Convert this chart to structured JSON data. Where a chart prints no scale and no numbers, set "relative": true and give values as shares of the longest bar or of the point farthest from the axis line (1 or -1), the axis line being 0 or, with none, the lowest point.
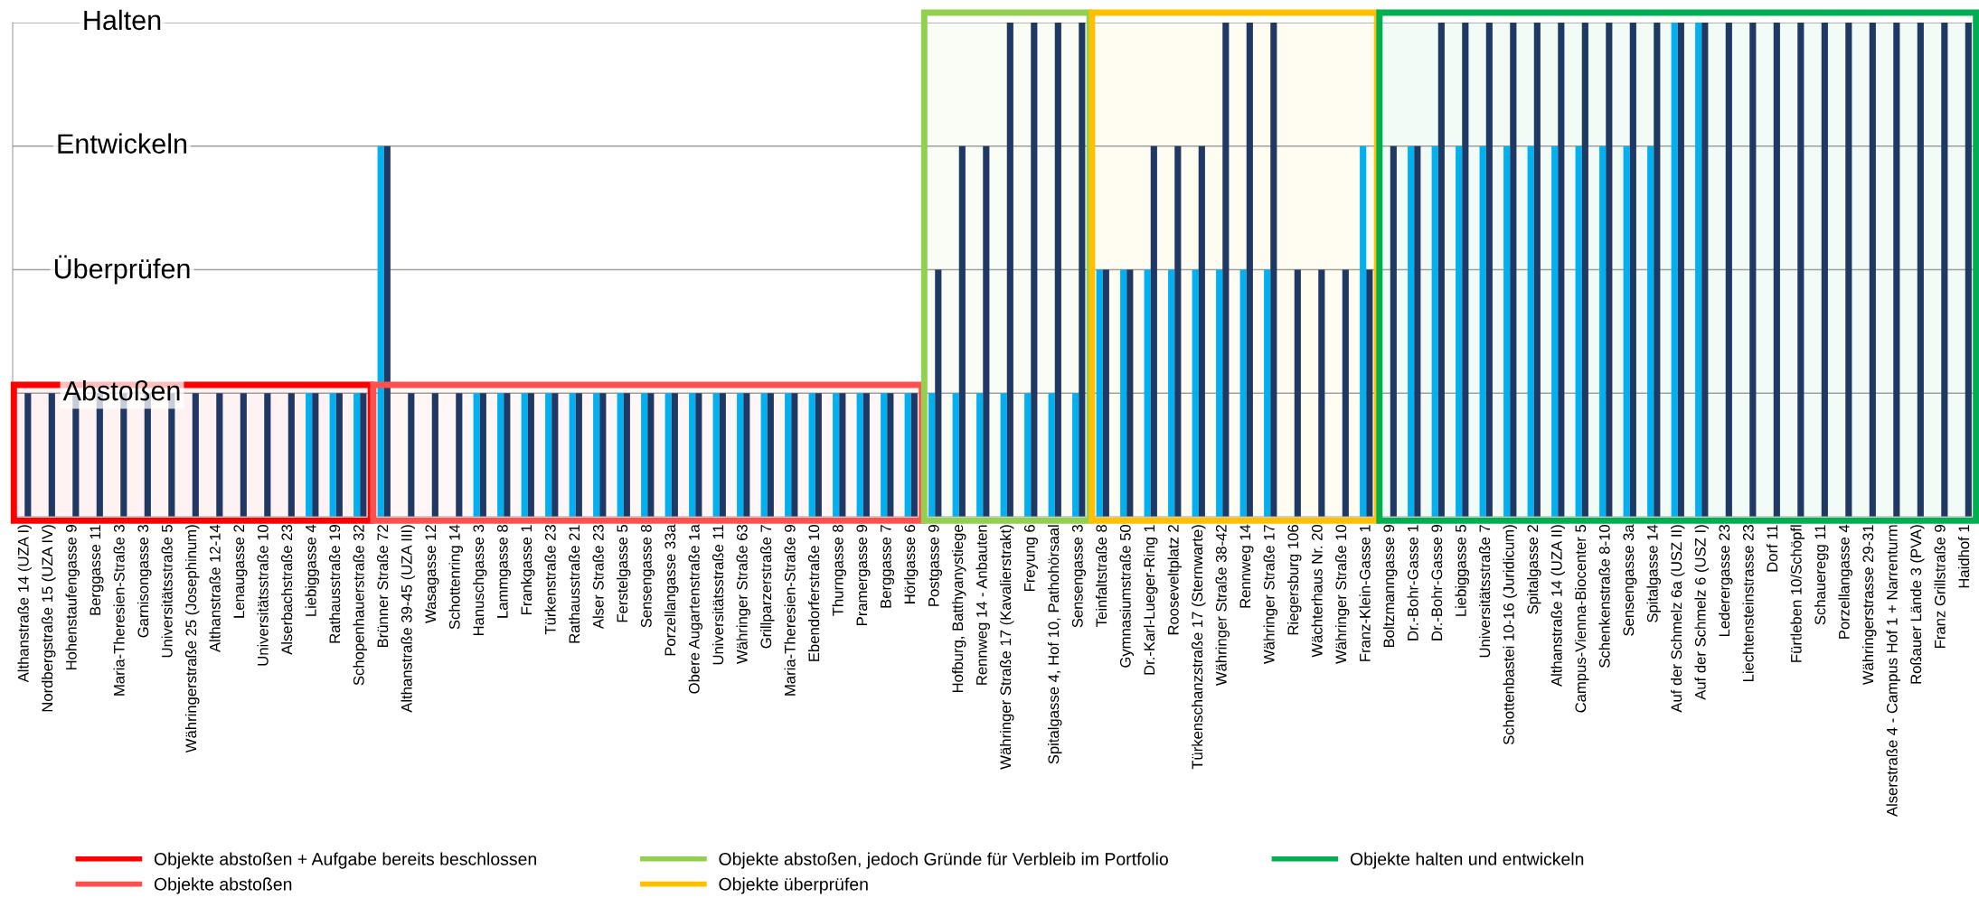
{
  "chart_data": {
    "type": "bar",
    "categories": [
      "Althanstraße 14 (UZA I)",
      "Nordbergstraße 15 (UZA IV)",
      "Hohenstaufengasse 9",
      "Berggasse 11",
      "Maria-Theresien-Straße 3",
      "Garnisongasse 3",
      "Universitätsstraße 5",
      "Währingerstraße 25 (Josephinum)",
      "Althanstraße 12-14",
      "Lenaugasse 2",
      "Universitätsstraße 10",
      "Alserbachstraße 23",
      "Liebiggasse 4",
      "Rathausstraße 19",
      "Schopenhauerstraße 32",
      "Brünner Straße 72",
      "Althanstraße 39-45 (UZA III)",
      "Wasagasse 12",
      "Schottenring 14",
      "Hanuschgasse 3",
      "Lammgasse 8",
      "Frankgasse 1",
      "Türkenstraße 23",
      "Rathausstraße 21",
      "Alser Straße 23",
      "Ferstelgasse 5",
      "Sensengasse 8",
      "Porzellangasse 33a",
      "Obere Augartenstraße 1a",
      "Universitätsstraße 11",
      "Währinger Straße 63",
      "Grillparzerstraße 7",
      "Maria-Theresien-Straße 9",
      "Ebendorferstraße 10",
      "Thurngasse 8",
      "Pramergasse 9",
      "Berggasse 7",
      "Hörlgasse 6",
      "Postgasse 9",
      "Hofburg, Batthyanystiege",
      "Rennweg 14 - Anbauten",
      "Währinger Straße 17 (Kavalierstrakt)",
      "Freyung 6",
      "Spitalgasse 4, Hof 10, Pathohörsaal",
      "Sensengasse 3",
      "Teinfaltstraße 8",
      "Gymnasiumstraße 50",
      "Dr.-Karl-Lueger-Ring 1",
      "Rooseveltplatz 2",
      "Türkenschanzstraße 17 (Sternwarte)",
      "Währinger Straße 38-42",
      "Rennweg 14",
      "Währinger Straße 17",
      "Riegersburg 106",
      "Wächterhaus Nr. 20",
      "Währinger Straße 10",
      "Franz-Klein-Gasse 1",
      "Boltzmanngasse 9",
      "Dr.-Bohr-Gasse 1",
      "Dr.-Bohr-Gasse 9",
      "Liebiggasse 5",
      "Universitätsstraße 7",
      "Schottenbastei 10-16 (Juridicum)",
      "Spitalgasse 2",
      "Althanstraße 14 (UZA II)",
      "Campus-Vienna-Biocenter 5",
      "Schenkenstraße 8-10",
      "Sensengasse 3a",
      "Spitalgasse 14",
      "Auf der Schmelz 6a (USZ II)",
      "Auf der Schmelz 6 (USZ I)",
      "Lederergasse 23",
      "Liechtensteinstrasse 23",
      "Dorf 11",
      "Fürtleben 10/Schöpfl",
      "Schaueregg 11",
      "Porzellangasse 4",
      "Währingerstrasse 29-31",
      "Alserstraße 4 - Campus Hof 1 + Narrenturm",
      "Roßauer Lände 3 (PVA)",
      "Franz Grillstraße 9",
      "Haidhof 1"
    ],
    "relative": true,
    "series": [
      {
        "color": "#00b0f0",
        "values": [
          null,
          null,
          null,
          null,
          null,
          null,
          null,
          null,
          null,
          null,
          null,
          null,
          0.25,
          0.25,
          0.25,
          0.75,
          null,
          null,
          null,
          0.25,
          0.25,
          0.25,
          0.25,
          0.25,
          0.25,
          0.25,
          0.25,
          0.25,
          0.25,
          0.25,
          0.25,
          0.25,
          0.25,
          0.25,
          0.25,
          0.25,
          0.25,
          0.25,
          0.25,
          0.25,
          0.25,
          0.25,
          0.25,
          0.25,
          0.25,
          0.5,
          0.5,
          0.5,
          0.5,
          0.5,
          0.5,
          0.5,
          0.5,
          null,
          null,
          null,
          0.75,
          null,
          0.75,
          0.75,
          0.75,
          0.75,
          0.75,
          0.75,
          0.75,
          0.75,
          0.75,
          0.75,
          0.75,
          1,
          1,
          null,
          null,
          null,
          null,
          null,
          null,
          null,
          null,
          null,
          null,
          null
        ]
      },
      {
        "color": "#1f3864",
        "values": [
          0.25,
          0.25,
          0.25,
          0.25,
          0.25,
          0.25,
          0.25,
          0.25,
          0.25,
          0.25,
          0.25,
          0.25,
          0.25,
          0.25,
          0.25,
          0.75,
          0.25,
          0.25,
          0.25,
          0.25,
          0.25,
          0.25,
          0.25,
          0.25,
          0.25,
          0.25,
          0.25,
          0.25,
          0.25,
          0.25,
          0.25,
          0.25,
          0.25,
          0.25,
          0.25,
          0.25,
          0.25,
          0.25,
          0.5,
          0.75,
          0.75,
          1,
          1,
          1,
          1,
          0.5,
          0.5,
          0.75,
          0.75,
          0.75,
          1,
          1,
          1,
          0.5,
          0.5,
          0.5,
          0.5,
          0.75,
          0.75,
          1,
          1,
          1,
          1,
          1,
          1,
          1,
          1,
          1,
          1,
          1,
          1,
          1,
          1,
          1,
          1,
          1,
          1,
          1,
          1,
          1,
          1,
          1
        ]
      }
    ],
    "ref_lines": [
      {
        "axis": "y",
        "value": 0.25,
        "label": "Abstoßen",
        "color": "#a0a0a0"
      },
      {
        "axis": "y",
        "value": 0.5,
        "label": "Überprüfen",
        "color": "#a0a0a0"
      },
      {
        "axis": "y",
        "value": 0.75,
        "label": "Entwickeln",
        "color": "#a0a0a0"
      },
      {
        "axis": "y",
        "value": 1,
        "label": "Halten",
        "color": "#a0a0a0"
      }
    ],
    "bands": [
      {
        "axis": "x",
        "from": "Althanstraße 14 (UZA I)",
        "to": "Schopenhauerstraße 32",
        "label": "Objekte abstoßen + Aufgabe bereits beschlossen",
        "color": "#ff0000"
      },
      {
        "axis": "x",
        "from": "Brünner Straße 72",
        "to": "Hörlgasse 6",
        "label": "Objekte abstoßen",
        "color": "#ff5050"
      },
      {
        "axis": "x",
        "from": "Postgasse 9",
        "to": "Sensengasse 3",
        "label": "Objekte abstoßen, jedoch Gründe für Verbleib im Portfolio",
        "color": "#92d050"
      },
      {
        "axis": "x",
        "from": "Teinfaltstraße 8",
        "to": "Franz-Klein-Gasse 1",
        "label": "Objekte überprüfen",
        "color": "#ffc000"
      },
      {
        "axis": "x",
        "from": "Boltzmanngasse 9",
        "to": "Haidhof 1",
        "label": "Objekte halten und entwickeln",
        "color": "#00b050"
      }
    ],
    "legend": "bottom"
  }
}
